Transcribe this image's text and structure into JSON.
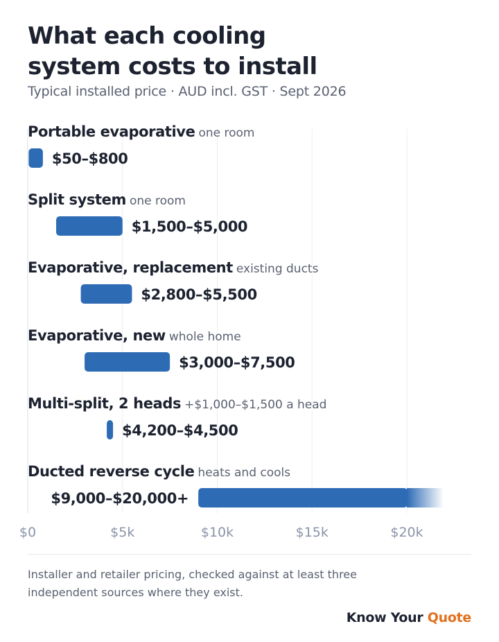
{
  "chart_data": {
    "type": "bar",
    "orientation": "horizontal-range",
    "title_lines": [
      "What each cooling",
      "system costs to install"
    ],
    "subtitle": "Typical installed price · AUD incl. GST · Sept 2026",
    "xlim": [
      0,
      22000
    ],
    "xticks": [
      0,
      5000,
      10000,
      15000,
      20000
    ],
    "xtick_labels": [
      "$0",
      "$5k",
      "$10k",
      "$15k",
      "$20k"
    ],
    "grid": true,
    "bar_color": "#2d6bb5",
    "categories": [
      {
        "label": "Portable evaporative",
        "note": "one room",
        "low": 50,
        "high": 800,
        "value_label": "$50–$800",
        "label_side": "right",
        "open_ended": false
      },
      {
        "label": "Split system",
        "note": "one room",
        "low": 1500,
        "high": 5000,
        "value_label": "$1,500–$5,000",
        "label_side": "right",
        "open_ended": false
      },
      {
        "label": "Evaporative, replacement",
        "note": "existing ducts",
        "low": 2800,
        "high": 5500,
        "value_label": "$2,800–$5,500",
        "label_side": "right",
        "open_ended": false
      },
      {
        "label": "Evaporative, new",
        "note": "whole home",
        "low": 3000,
        "high": 7500,
        "value_label": "$3,000–$7,500",
        "label_side": "right",
        "open_ended": false
      },
      {
        "label": "Multi-split, 2 heads",
        "note": "+$1,000–$1,500 a head",
        "low": 4200,
        "high": 4500,
        "value_label": "$4,200–$4,500",
        "label_side": "right",
        "open_ended": false
      },
      {
        "label": "Ducted reverse cycle",
        "note": "heats and cools",
        "low": 9000,
        "high": 20000,
        "value_label": "$9,000–$20,000+",
        "label_side": "left",
        "open_ended": true
      }
    ]
  },
  "footer": {
    "note": "Installer and retailer pricing, checked against at least three independent sources where they exist.",
    "brand_main": "Know Your ",
    "brand_accent": "Quote"
  }
}
